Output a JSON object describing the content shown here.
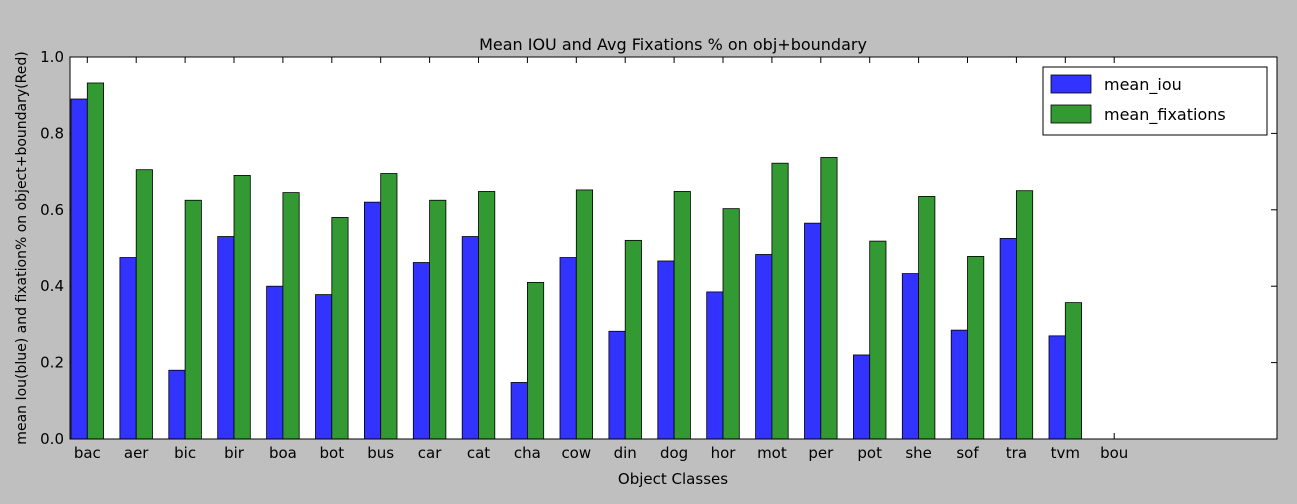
{
  "chart_data": {
    "type": "bar",
    "title": "Mean IOU and Avg Fixations % on obj+boundary",
    "xlabel": "Object Classes",
    "ylabel": "mean Iou(blue) and fixation% on object+boundary(Red)",
    "ylim": [
      0,
      1.0
    ],
    "yticks": [
      "0.0",
      "0.2",
      "0.4",
      "0.6",
      "0.8",
      "1.0"
    ],
    "grid": false,
    "legend_position": "top-right",
    "categories": [
      "bac",
      "aer",
      "bic",
      "bir",
      "boa",
      "bot",
      "bus",
      "car",
      "cat",
      "cha",
      "cow",
      "din",
      "dog",
      "hor",
      "mot",
      "per",
      "pot",
      "she",
      "sof",
      "tra",
      "tvm",
      "bou"
    ],
    "series": [
      {
        "name": "mean_iou",
        "color": "#3333ff",
        "values": [
          0.89,
          0.475,
          0.18,
          0.53,
          0.4,
          0.378,
          0.62,
          0.462,
          0.53,
          0.148,
          0.475,
          0.282,
          0.466,
          0.385,
          0.483,
          0.565,
          0.22,
          0.433,
          0.285,
          0.525,
          0.27,
          null
        ]
      },
      {
        "name": "mean_fixations",
        "color": "#339933",
        "values": [
          0.932,
          0.705,
          0.625,
          0.69,
          0.645,
          0.58,
          0.695,
          0.625,
          0.648,
          0.41,
          0.652,
          0.52,
          0.648,
          0.603,
          0.722,
          0.737,
          0.518,
          0.635,
          0.478,
          0.65,
          0.357,
          null
        ]
      }
    ]
  }
}
